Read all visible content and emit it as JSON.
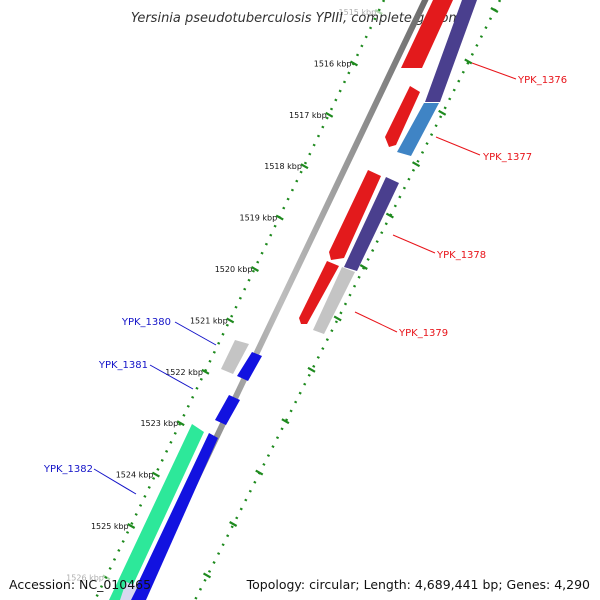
{
  "title": "Yersinia pseudotuberculosis YPIII, complete genome",
  "footer": {
    "accession": "Accession: NC_010465",
    "topology": "Topology: circular; Length: 4,689,441 bp; Genes: 4,290"
  },
  "ruler_ticks": [
    {
      "label": "1515 kbp",
      "faded": true
    },
    {
      "label": "1516 kbp"
    },
    {
      "label": "1517 kbp"
    },
    {
      "label": "1518 kbp"
    },
    {
      "label": "1519 kbp"
    },
    {
      "label": "1520 kbp"
    },
    {
      "label": "1521 kbp"
    },
    {
      "label": "1522 kbp"
    },
    {
      "label": "1523 kbp"
    },
    {
      "label": "1524 kbp"
    },
    {
      "label": "1525 kbp"
    },
    {
      "label": "1526 kbp",
      "faded": true
    }
  ],
  "colors": {
    "forward_label": "#e8141a",
    "reverse_label": "#1414c8",
    "red": "#e31a1c",
    "dark_purple": "#4a3f8e",
    "steel_blue": "#3f84c5",
    "silver": "#c4c4c4",
    "blue": "#1212e0",
    "green": "#2de89a",
    "backbone": "#8a8a8a",
    "tick_green": "#1e8a1e"
  },
  "genes": [
    {
      "label": "YPK_1376",
      "strand": "forward"
    },
    {
      "label": "YPK_1377",
      "strand": "forward"
    },
    {
      "label": "YPK_1378",
      "strand": "forward"
    },
    {
      "label": "YPK_1379",
      "strand": "forward"
    },
    {
      "label": "YPK_1380",
      "strand": "reverse"
    },
    {
      "label": "YPK_1381",
      "strand": "reverse"
    },
    {
      "label": "YPK_1382",
      "strand": "reverse"
    }
  ]
}
